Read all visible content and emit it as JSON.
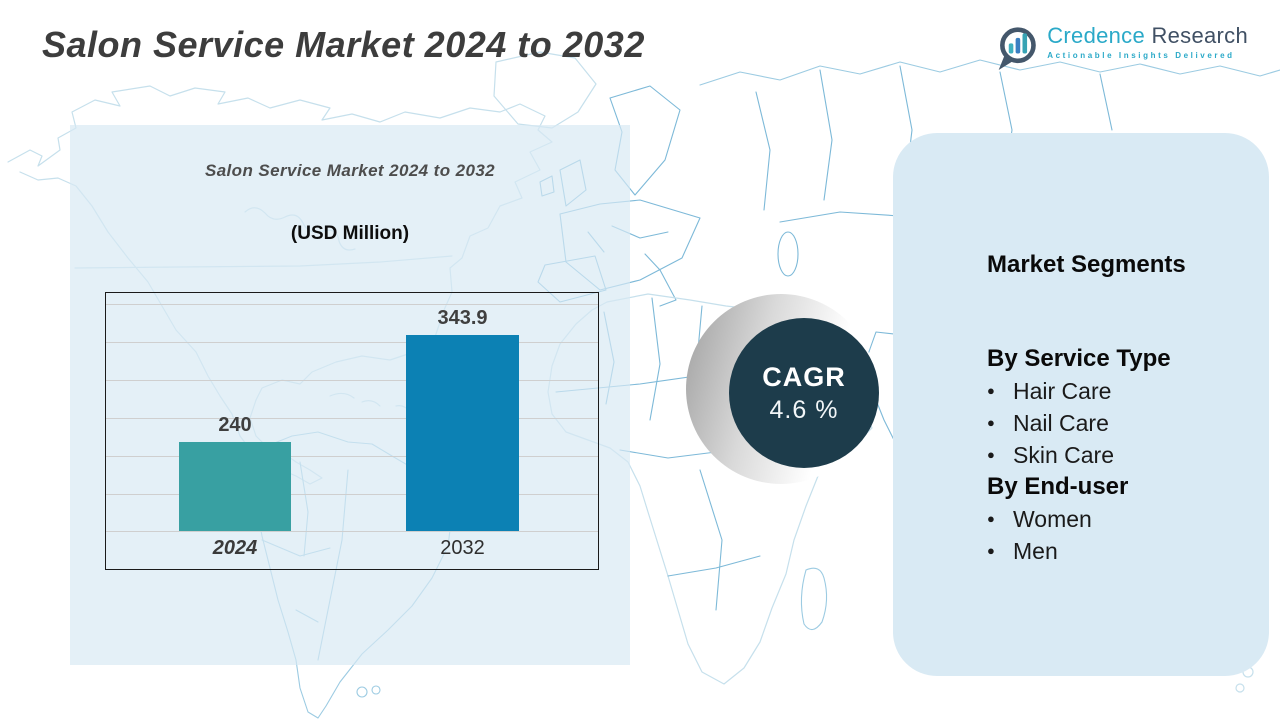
{
  "page": {
    "title": "Salon Service Market 2024 to 2032"
  },
  "logo": {
    "brand_primary": "Credence",
    "brand_secondary": "Research",
    "tagline": "Actionable Insights Delivered",
    "icon": "bar-chart-bubble-icon",
    "colors": {
      "teal": "#2aa9c8",
      "slate": "#405064"
    }
  },
  "chart_panel": {
    "title": "Salon Service Market 2024 to 2032",
    "subtitle": "(USD Million)"
  },
  "chart_data": {
    "type": "bar",
    "title": "Salon Service Market 2024 to 2032",
    "unit": "USD Million",
    "categories": [
      "2024",
      "2032"
    ],
    "values": [
      240,
      343.9
    ],
    "value_labels": [
      "240",
      "343.9"
    ],
    "bar_colors": [
      "#38a0a2",
      "#0c81b4"
    ],
    "ylim": [
      153,
      385
    ],
    "grid": true,
    "legend": false
  },
  "cagr": {
    "label": "CAGR",
    "value": "4.6 %"
  },
  "segments": {
    "title": "Market Segments",
    "groups": [
      {
        "heading": "By Service Type",
        "items": [
          "Hair Care",
          "Nail Care",
          "Skin Care"
        ]
      },
      {
        "heading": "By End-user",
        "items": [
          "Women",
          "Men"
        ]
      }
    ]
  },
  "colors": {
    "panel_left": "#e7f0f6",
    "panel_right": "#d9eaf4",
    "bar_2024": "#38a0a2",
    "bar_2032": "#0c81b4",
    "cagr_circle": "#1d3c4b",
    "map_stroke": "#9ccbe2",
    "title_text": "#3d3d3d"
  }
}
